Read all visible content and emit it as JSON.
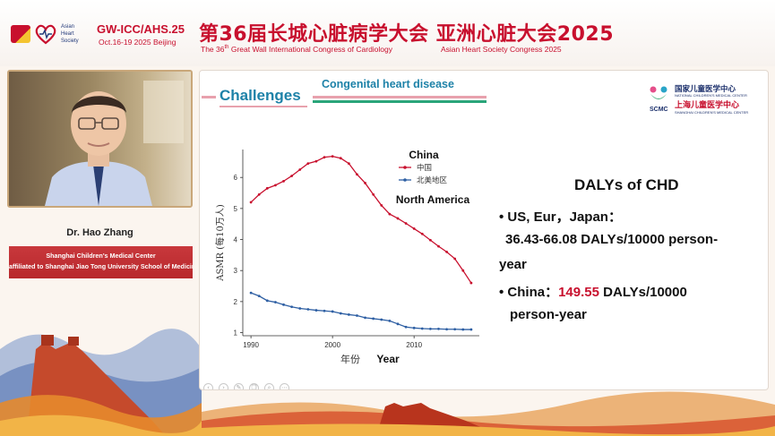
{
  "banner": {
    "event_code": "GW-ICC/AHS.25",
    "event_date": "Oct.16-19 2025 Beijing",
    "ahs_lines": [
      "Asian",
      "Heart",
      "Society"
    ],
    "title_cn": "第36届长城心脏病学大会  亚洲心脏大会2025",
    "title_en_prefix": "The 36",
    "title_en_sup": "th",
    "title_en_suffix": " Great Wall International Congress of Cardiology",
    "title_en_ahs": "Asian Heart Society Congress 2025"
  },
  "speaker": {
    "name": "Dr. Hao Zhang",
    "affiliation_line1": "Shanghai Children's Medical Center",
    "affiliation_line2": "affiliated to Shanghai Jiao Tong University School of Medicine"
  },
  "slide": {
    "heading": "Challenges",
    "subtitle": "Congenital heart disease",
    "scmc": {
      "letters": "SCMC",
      "cn_national": "国家儿童医学中心",
      "en_national": "NATIONAL CHILDREN'S MEDICAL CENTER",
      "cn_shanghai": "上海儿童医学中心",
      "en_shanghai": "SHANGHAI CHILDREN'S MEDICAL CENTER"
    },
    "dalys": {
      "title": "DALYs of CHD",
      "bullet1_head": "• US, Eur，Japan：",
      "bullet1_value": "36.43-66.08 DALYs/10000 person-",
      "bullet1_tail": "year",
      "bullet2_head": "• China：",
      "bullet2_value": "149.55",
      "bullet2_rest": " DALYs/10000",
      "bullet2_tail": "person-year"
    }
  },
  "chart_data": {
    "type": "line",
    "title": "",
    "xlabel": "年份",
    "xlabel_overlay": "Year",
    "ylabel": "ASMR (每10万人)",
    "xlim": [
      1989,
      2018
    ],
    "ylim": [
      0.9,
      6.9
    ],
    "x_ticks": [
      1990,
      2000,
      2010
    ],
    "y_ticks": [
      1,
      2,
      3,
      4,
      5,
      6
    ],
    "legend_placement": "top-center",
    "annotation_china": "China",
    "annotation_na": "North America",
    "x": [
      1990,
      1991,
      1992,
      1993,
      1994,
      1995,
      1996,
      1997,
      1998,
      1999,
      2000,
      2001,
      2002,
      2003,
      2004,
      2005,
      2006,
      2007,
      2008,
      2009,
      2010,
      2011,
      2012,
      2013,
      2014,
      2015,
      2016,
      2017
    ],
    "series": [
      {
        "name": "中国",
        "color": "#c8102e",
        "values": [
          5.2,
          5.45,
          5.65,
          5.75,
          5.88,
          6.05,
          6.25,
          6.45,
          6.52,
          6.65,
          6.68,
          6.62,
          6.45,
          6.1,
          5.82,
          5.45,
          5.1,
          4.82,
          4.68,
          4.52,
          4.35,
          4.18,
          3.98,
          3.78,
          3.6,
          3.38,
          3.0,
          2.6
        ]
      },
      {
        "name": "北美地区",
        "color": "#2e5fa3",
        "values": [
          2.28,
          2.18,
          2.03,
          1.98,
          1.9,
          1.83,
          1.78,
          1.75,
          1.72,
          1.7,
          1.68,
          1.62,
          1.58,
          1.55,
          1.48,
          1.45,
          1.42,
          1.38,
          1.28,
          1.18,
          1.15,
          1.13,
          1.12,
          1.12,
          1.11,
          1.11,
          1.1,
          1.1
        ]
      }
    ]
  }
}
